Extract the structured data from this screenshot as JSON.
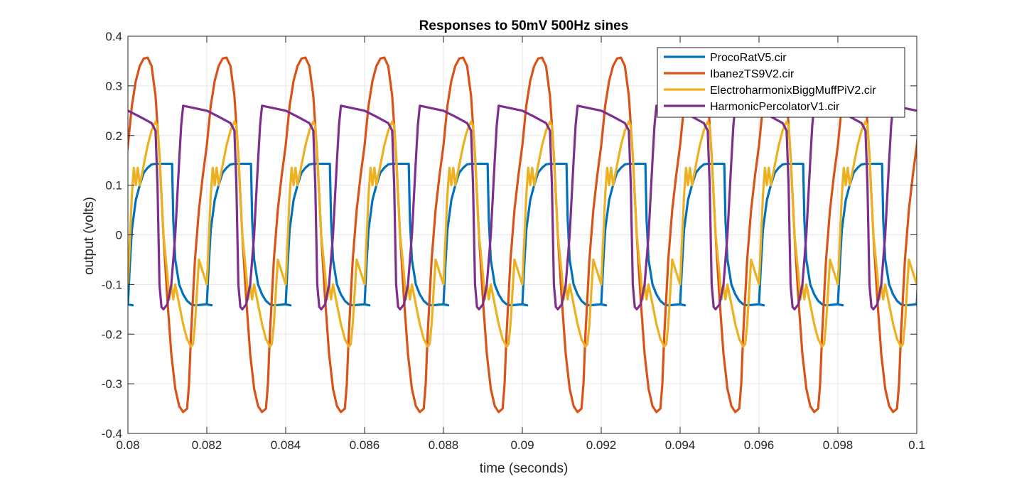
{
  "chart_data": {
    "type": "line",
    "title": "Responses to 50mV 500Hz sines",
    "xlabel": "time (seconds)",
    "ylabel": "output (volts)",
    "xlim": [
      0.08,
      0.1
    ],
    "ylim": [
      -0.4,
      0.4
    ],
    "grid": true,
    "legend_position": "top-right",
    "x_ticks": [
      "0.08",
      "0.082",
      "0.084",
      "0.086",
      "0.088",
      "0.09",
      "0.092",
      "0.094",
      "0.096",
      "0.098",
      "0.1"
    ],
    "y_ticks": [
      "-0.4",
      "-0.3",
      "-0.2",
      "-0.1",
      "0",
      "0.1",
      "0.2",
      "0.3",
      "0.4"
    ],
    "period": 0.002,
    "series": [
      {
        "name": "ProcoRatV5.cir",
        "color": "#0072BD",
        "points": [
          [
            0.0,
            -0.14
          ],
          [
            5e-05,
            -0.06
          ],
          [
            0.0001,
            0.01
          ],
          [
            0.0002,
            0.07
          ],
          [
            0.0003,
            0.1
          ],
          [
            0.0004,
            0.125
          ],
          [
            0.0005,
            0.135
          ],
          [
            0.0006,
            0.142
          ],
          [
            0.0007,
            0.143
          ],
          [
            0.00112,
            0.143
          ],
          [
            0.00115,
            0.03
          ],
          [
            0.0012,
            -0.05
          ],
          [
            0.0013,
            -0.1
          ],
          [
            0.0014,
            -0.12
          ],
          [
            0.0015,
            -0.133
          ],
          [
            0.0016,
            -0.14
          ],
          [
            0.0017,
            -0.142
          ],
          [
            0.00212,
            -0.142
          ],
          [
            0.002,
            -0.14
          ]
        ]
      },
      {
        "name": "IbanezTS9V2.cir",
        "color": "#D95319",
        "points": [
          [
            0.0,
            0.18
          ],
          [
            0.0001,
            0.26
          ],
          [
            0.0002,
            0.31
          ],
          [
            0.0003,
            0.34
          ],
          [
            0.0004,
            0.355
          ],
          [
            0.0005,
            0.357
          ],
          [
            0.0006,
            0.34
          ],
          [
            0.0007,
            0.28
          ],
          [
            0.0008,
            0.16
          ],
          [
            0.0009,
            0.0
          ],
          [
            0.001,
            -0.13
          ],
          [
            0.0011,
            -0.24
          ],
          [
            0.0012,
            -0.31
          ],
          [
            0.0013,
            -0.345
          ],
          [
            0.0014,
            -0.357
          ],
          [
            0.0015,
            -0.35
          ],
          [
            0.00155,
            -0.3
          ],
          [
            0.0016,
            -0.2
          ],
          [
            0.0017,
            -0.05
          ],
          [
            0.0018,
            0.05
          ],
          [
            0.0019,
            0.12
          ],
          [
            0.002,
            0.18
          ]
        ]
      },
      {
        "name": "ElectroharmonixBiggMuffPiV2.cir",
        "color": "#EDB120",
        "points": [
          [
            0.0,
            -0.1
          ],
          [
            0.0001,
            0.08
          ],
          [
            0.00015,
            0.135
          ],
          [
            0.0002,
            0.1
          ],
          [
            0.00025,
            0.135
          ],
          [
            0.0003,
            0.1
          ],
          [
            0.0004,
            0.14
          ],
          [
            0.0005,
            0.18
          ],
          [
            0.0006,
            0.21
          ],
          [
            0.0007,
            0.228
          ],
          [
            0.00075,
            0.22
          ],
          [
            0.0008,
            0.16
          ],
          [
            0.0009,
            0.0
          ],
          [
            0.001,
            -0.08
          ],
          [
            0.00105,
            -0.13
          ],
          [
            0.0011,
            -0.1
          ],
          [
            0.00115,
            -0.13
          ],
          [
            0.0012,
            -0.1
          ],
          [
            0.0013,
            -0.14
          ],
          [
            0.0014,
            -0.18
          ],
          [
            0.0015,
            -0.21
          ],
          [
            0.0016,
            -0.225
          ],
          [
            0.00165,
            -0.22
          ],
          [
            0.0017,
            -0.18
          ],
          [
            0.0018,
            -0.05
          ],
          [
            0.002,
            -0.1
          ]
        ]
      },
      {
        "name": "HarmonicPercolatorV1.cir",
        "color": "#7E2F8E",
        "points": [
          [
            0.0,
            0.25
          ],
          [
            0.0003,
            0.238
          ],
          [
            0.0006,
            0.225
          ],
          [
            0.0007,
            0.21
          ],
          [
            0.00075,
            0.1
          ],
          [
            0.0008,
            -0.1
          ],
          [
            0.00085,
            -0.145
          ],
          [
            0.0009,
            -0.15
          ],
          [
            0.001,
            -0.14
          ],
          [
            0.0011,
            -0.1
          ],
          [
            0.0012,
            0.0
          ],
          [
            0.0013,
            0.15
          ],
          [
            0.00135,
            0.22
          ],
          [
            0.0014,
            0.26
          ],
          [
            0.002,
            0.25
          ]
        ]
      }
    ]
  }
}
